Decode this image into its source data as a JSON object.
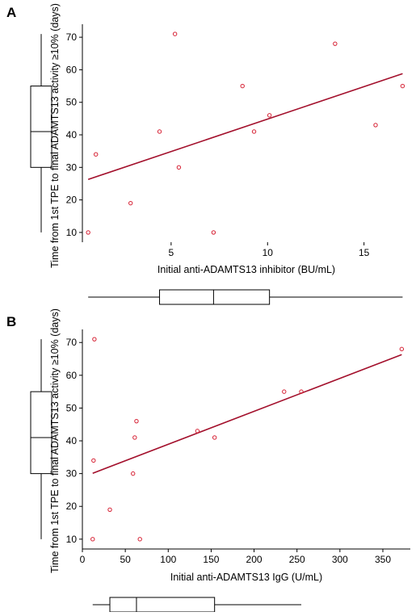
{
  "chart_data": [
    {
      "type": "scatter",
      "panel_label": "A",
      "xlabel": "Initial anti-ADAMTS13 inhibitor (BU/mL)",
      "ylabel": "Time from 1st TPE to final ADAMTS13 activity ≥10% (days)",
      "xlim": [
        0.4,
        17.4
      ],
      "ylim": [
        7,
        74
      ],
      "xticks": [
        5,
        10,
        15
      ],
      "yticks": [
        10,
        20,
        30,
        40,
        50,
        60,
        70
      ],
      "points": [
        {
          "x": 0.7,
          "y": 10
        },
        {
          "x": 1.1,
          "y": 34
        },
        {
          "x": 2.9,
          "y": 19
        },
        {
          "x": 4.4,
          "y": 41
        },
        {
          "x": 5.2,
          "y": 71
        },
        {
          "x": 5.4,
          "y": 30
        },
        {
          "x": 7.2,
          "y": 10
        },
        {
          "x": 8.7,
          "y": 55
        },
        {
          "x": 9.3,
          "y": 41
        },
        {
          "x": 10.1,
          "y": 46
        },
        {
          "x": 13.5,
          "y": 68
        },
        {
          "x": 15.6,
          "y": 43
        },
        {
          "x": 17.0,
          "y": 55
        }
      ],
      "fit_line": [
        {
          "x": 0.7,
          "y": 26.3
        },
        {
          "x": 17.0,
          "y": 58.8
        }
      ],
      "x_boxplot": {
        "min": 0.7,
        "q1": 4.4,
        "median": 7.2,
        "q3": 10.1,
        "max": 17.0
      },
      "y_boxplot": {
        "min": 10,
        "q1": 30,
        "median": 41,
        "q3": 55,
        "max": 71
      },
      "point_color": "#d62033",
      "line_color": "#a3102c"
    },
    {
      "type": "scatter",
      "panel_label": "B",
      "xlabel": "Initial anti-ADAMTS13 IgG (U/mL)",
      "ylabel": "Time from 1st TPE to final ADAMTS13 activity ≥10% (days)",
      "xlim": [
        0,
        382
      ],
      "ylim": [
        7,
        74
      ],
      "xticks": [
        0,
        50,
        100,
        150,
        200,
        250,
        300,
        350
      ],
      "yticks": [
        10,
        20,
        30,
        40,
        50,
        60,
        70
      ],
      "points": [
        {
          "x": 12,
          "y": 10
        },
        {
          "x": 13,
          "y": 34
        },
        {
          "x": 14,
          "y": 71
        },
        {
          "x": 32,
          "y": 19
        },
        {
          "x": 59,
          "y": 30
        },
        {
          "x": 61,
          "y": 41
        },
        {
          "x": 63,
          "y": 46
        },
        {
          "x": 67,
          "y": 10
        },
        {
          "x": 134,
          "y": 43
        },
        {
          "x": 154,
          "y": 41
        },
        {
          "x": 235,
          "y": 55
        },
        {
          "x": 255,
          "y": 55
        },
        {
          "x": 372,
          "y": 68
        }
      ],
      "fit_line": [
        {
          "x": 12,
          "y": 30.1
        },
        {
          "x": 372,
          "y": 66.3
        }
      ],
      "x_boxplot": {
        "min": 12,
        "q1": 32,
        "median": 63,
        "q3": 154,
        "max": 255
      },
      "y_boxplot": {
        "min": 10,
        "q1": 30,
        "median": 41,
        "q3": 55,
        "max": 71
      },
      "point_color": "#d62033",
      "line_color": "#a3102c"
    }
  ]
}
